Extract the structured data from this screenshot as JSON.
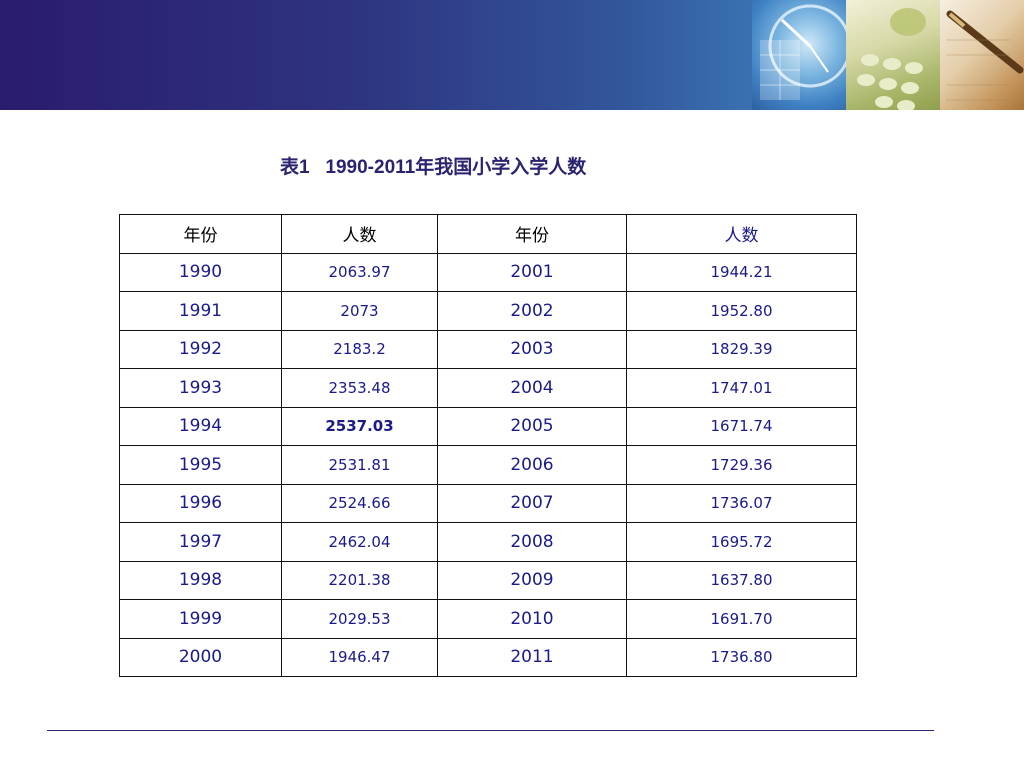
{
  "title": "表1   1990-2011年我国小学入学人数",
  "colors": {
    "banner_left": "#2a1b6e",
    "banner_right": "#3a70b0",
    "title": "#2a2370",
    "cell_text": "#1a1a8a",
    "highlight": "#e00000"
  },
  "decorations": [
    "clock-photo",
    "calculator-photo",
    "fountain-pen-photo"
  ],
  "table": {
    "headers": [
      "年份",
      "人数",
      "年份",
      "人数"
    ],
    "rows": [
      [
        "1990",
        "2063.97",
        "2001",
        "1944.21"
      ],
      [
        "1991",
        "2073",
        "2002",
        "1952.80"
      ],
      [
        "1992",
        "2183.2",
        "2003",
        "1829.39"
      ],
      [
        "1993",
        "2353.48",
        "2004",
        "1747.01"
      ],
      [
        "1994",
        "2537.03",
        "2005",
        "1671.74"
      ],
      [
        "1995",
        "2531.81",
        "2006",
        "1729.36"
      ],
      [
        "1996",
        "2524.66",
        "2007",
        "1736.07"
      ],
      [
        "1997",
        "2462.04",
        "2008",
        "1695.72"
      ],
      [
        "1998",
        "2201.38",
        "2009",
        "1637.80"
      ],
      [
        "1999",
        "2029.53",
        "2010",
        "1691.70"
      ],
      [
        "2000",
        "1946.47",
        "2011",
        "1736.80"
      ]
    ]
  }
}
